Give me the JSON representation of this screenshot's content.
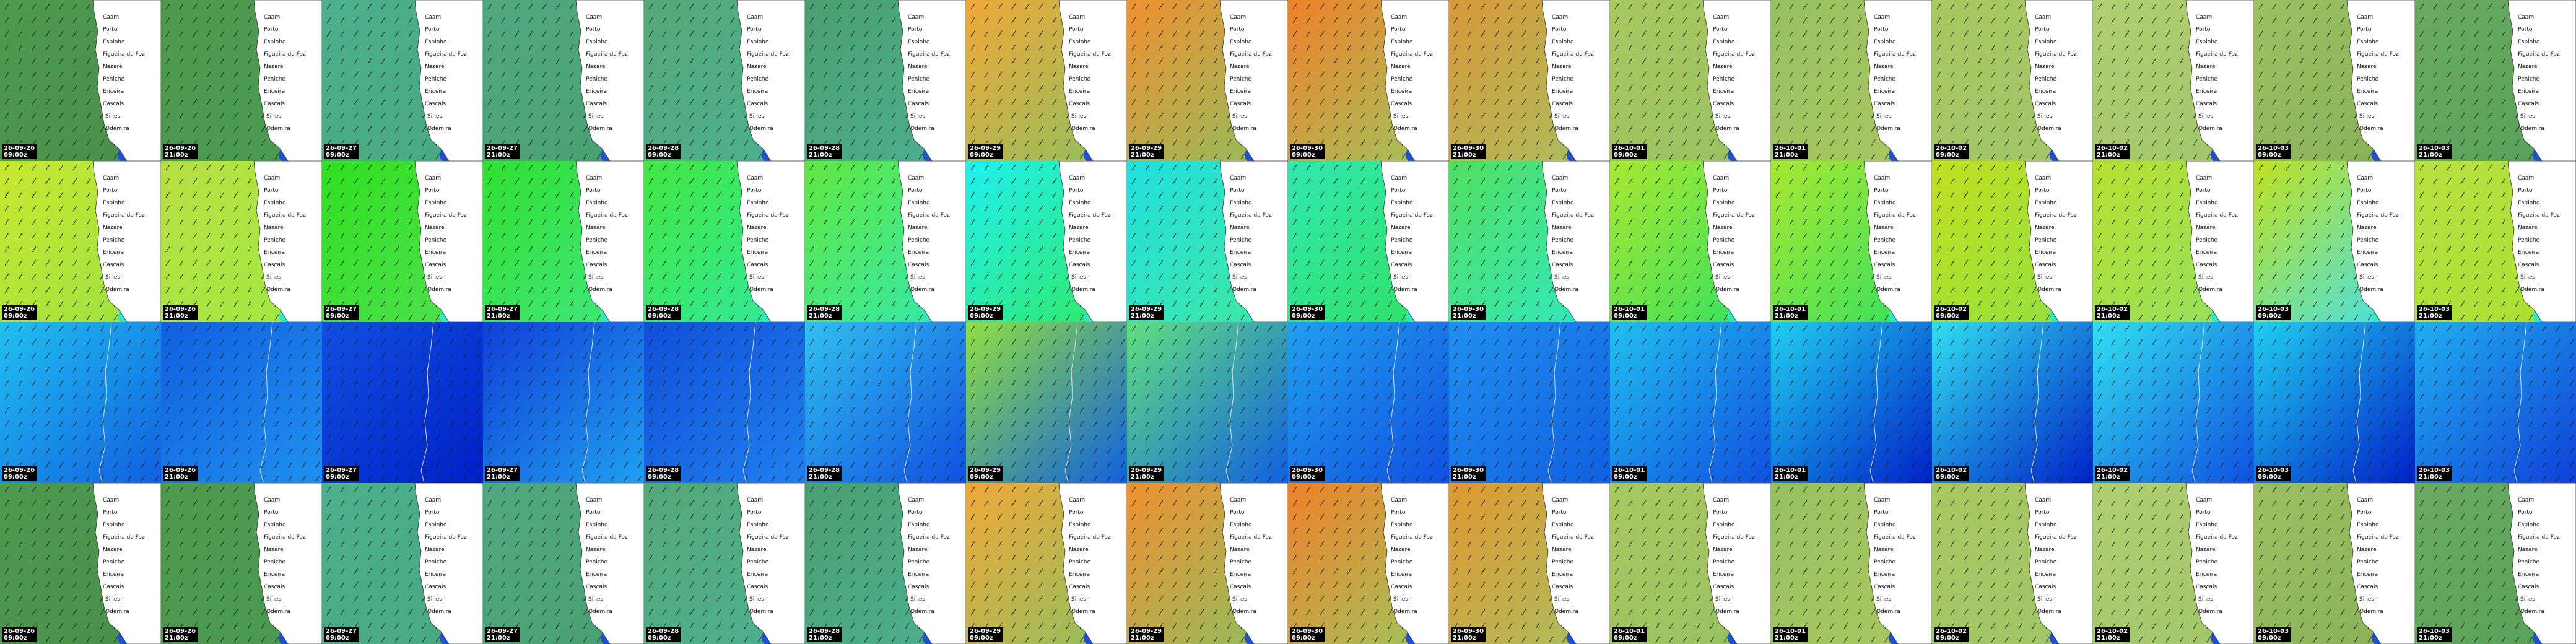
{
  "frames": [
    {
      "date": "26-09-26",
      "time": "09:00z"
    },
    {
      "date": "26-09-26",
      "time": "21:00z"
    },
    {
      "date": "26-09-27",
      "time": "09:00z"
    },
    {
      "date": "26-09-27",
      "time": "21:00z"
    },
    {
      "date": "26-09-28",
      "time": "09:00z"
    },
    {
      "date": "26-09-28",
      "time": "21:00z"
    },
    {
      "date": "26-09-29",
      "time": "09:00z"
    },
    {
      "date": "26-09-29",
      "time": "21:00z"
    },
    {
      "date": "26-09-30",
      "time": "09:00z"
    },
    {
      "date": "26-09-30",
      "time": "21:00z"
    },
    {
      "date": "26-10-01",
      "time": "09:00z"
    },
    {
      "date": "26-10-01",
      "time": "21:00z"
    },
    {
      "date": "26-10-02",
      "time": "09:00z"
    },
    {
      "date": "26-10-02",
      "time": "21:00z"
    },
    {
      "date": "26-10-03",
      "time": "09:00z"
    },
    {
      "date": "26-10-03",
      "time": "21:00z"
    }
  ],
  "places": [
    "Caam",
    "Porto",
    "Espinho",
    "Figueira da Foz",
    "Nazaré",
    "Peniche",
    "Ericeira",
    "Cascais",
    "Sines",
    "Odemira"
  ]
}
